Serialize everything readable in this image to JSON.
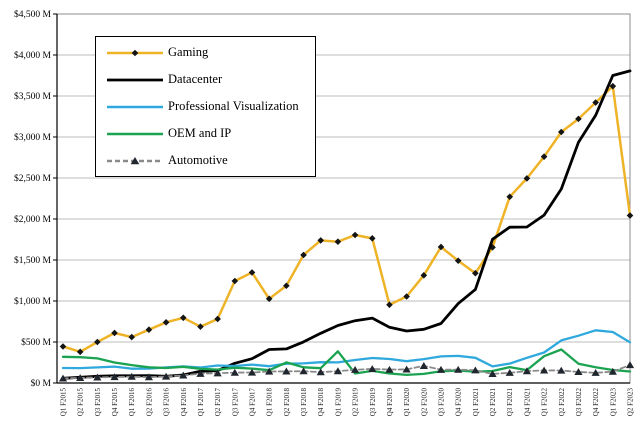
{
  "chart_data": {
    "type": "line",
    "title": "",
    "xlabel": "",
    "ylabel": "",
    "grid": "horizontal",
    "legend_position": "top-left",
    "categories": [
      "Q1 F2015",
      "Q2 F2015",
      "Q3 F2015",
      "Q4 F2015",
      "Q1 F2016",
      "Q2 F2016",
      "Q3 F2016",
      "Q4 F2016",
      "Q1 F2017",
      "Q2 F2017",
      "Q3 F2017",
      "Q4 F2017",
      "Q1 F2018",
      "Q2 F2018",
      "Q3 F2018",
      "Q4 F2018",
      "Q1 F2019",
      "Q2 F2019",
      "Q3 F2019",
      "Q4 F2019",
      "Q1 F2020",
      "Q2 F2020",
      "Q3 F2020",
      "Q4 F2020",
      "Q1 F2021",
      "Q2 F2021",
      "Q3 F2021",
      "Q4 F2021",
      "Q1 F2022",
      "Q2 F2022",
      "Q3 F2022",
      "Q4 F2022",
      "Q1 F2023",
      "Q2 F2023"
    ],
    "series": [
      {
        "name": "Gaming",
        "color": "#EFB327",
        "marker": "diamond",
        "marker_color": "#141414",
        "dash": "none",
        "width": 2.5,
        "values": [
          445,
          380,
          500,
          610,
          560,
          650,
          740,
          795,
          687,
          781,
          1244,
          1348,
          1027,
          1186,
          1561,
          1739,
          1723,
          1805,
          1764,
          954,
          1055,
          1313,
          1659,
          1491,
          1339,
          1654,
          2271,
          2495,
          2760,
          3061,
          3221,
          3420,
          3620,
          2042
        ]
      },
      {
        "name": "Datacenter",
        "color": "#000000",
        "marker": "none",
        "marker_color": "#000000",
        "dash": "none",
        "width": 2.8,
        "values": [
          57,
          70,
          82,
          88,
          88,
          90,
          82,
          97,
          143,
          151,
          240,
          296,
          409,
          416,
          501,
          606,
          701,
          760,
          792,
          679,
          634,
          655,
          726,
          968,
          1141,
          1752,
          1900,
          1903,
          2048,
          2366,
          2936,
          3263,
          3750,
          3806
        ]
      },
      {
        "name": "Professional Visualization",
        "color": "#2FA9DD",
        "marker": "none",
        "marker_color": "#2FA9DD",
        "dash": "none",
        "width": 2.3,
        "values": [
          183,
          182,
          190,
          200,
          174,
          176,
          190,
          203,
          189,
          214,
          207,
          225,
          205,
          235,
          239,
          254,
          251,
          281,
          305,
          293,
          266,
          291,
          324,
          331,
          307,
          203,
          236,
          307,
          372,
          519,
          577,
          643,
          622,
          496
        ]
      },
      {
        "name": "OEM and IP",
        "color": "#1CA351",
        "marker": "none",
        "marker_color": "#1CA351",
        "dash": "none",
        "width": 2.3,
        "values": [
          320,
          315,
          300,
          250,
          218,
          192,
          183,
          198,
          173,
          163,
          186,
          176,
          156,
          251,
          191,
          180,
          387,
          116,
          148,
          116,
          99,
          111,
          143,
          152,
          138,
          146,
          194,
          157,
          327,
          409,
          234,
          192,
          158,
          140
        ]
      },
      {
        "name": "Automotive",
        "color": "#8A8A8A",
        "marker": "triangle",
        "marker_color": "#20262E",
        "dash": "5,3",
        "width": 1.8,
        "values": [
          56,
          62,
          68,
          73,
          77,
          71,
          79,
          93,
          113,
          119,
          127,
          128,
          140,
          142,
          144,
          132,
          145,
          161,
          172,
          163,
          166,
          209,
          162,
          163,
          155,
          111,
          125,
          145,
          154,
          152,
          135,
          125,
          138,
          220
        ]
      }
    ],
    "y_axis": {
      "min": 0,
      "max": 4500,
      "step": 500,
      "tick_labels": [
        "$0 M",
        "$500 M",
        "$1,000 M",
        "$1,500 M",
        "$2,000 M",
        "$2,500 M",
        "$3,000 M",
        "$3,500 M",
        "$4,000 M",
        "$4,500 M"
      ]
    }
  },
  "colors": {
    "grid": "#BDBDBD",
    "axis": "#000000",
    "plot_border": "#8C8C8C",
    "background": "#FFFFFF",
    "text": "#000000"
  }
}
